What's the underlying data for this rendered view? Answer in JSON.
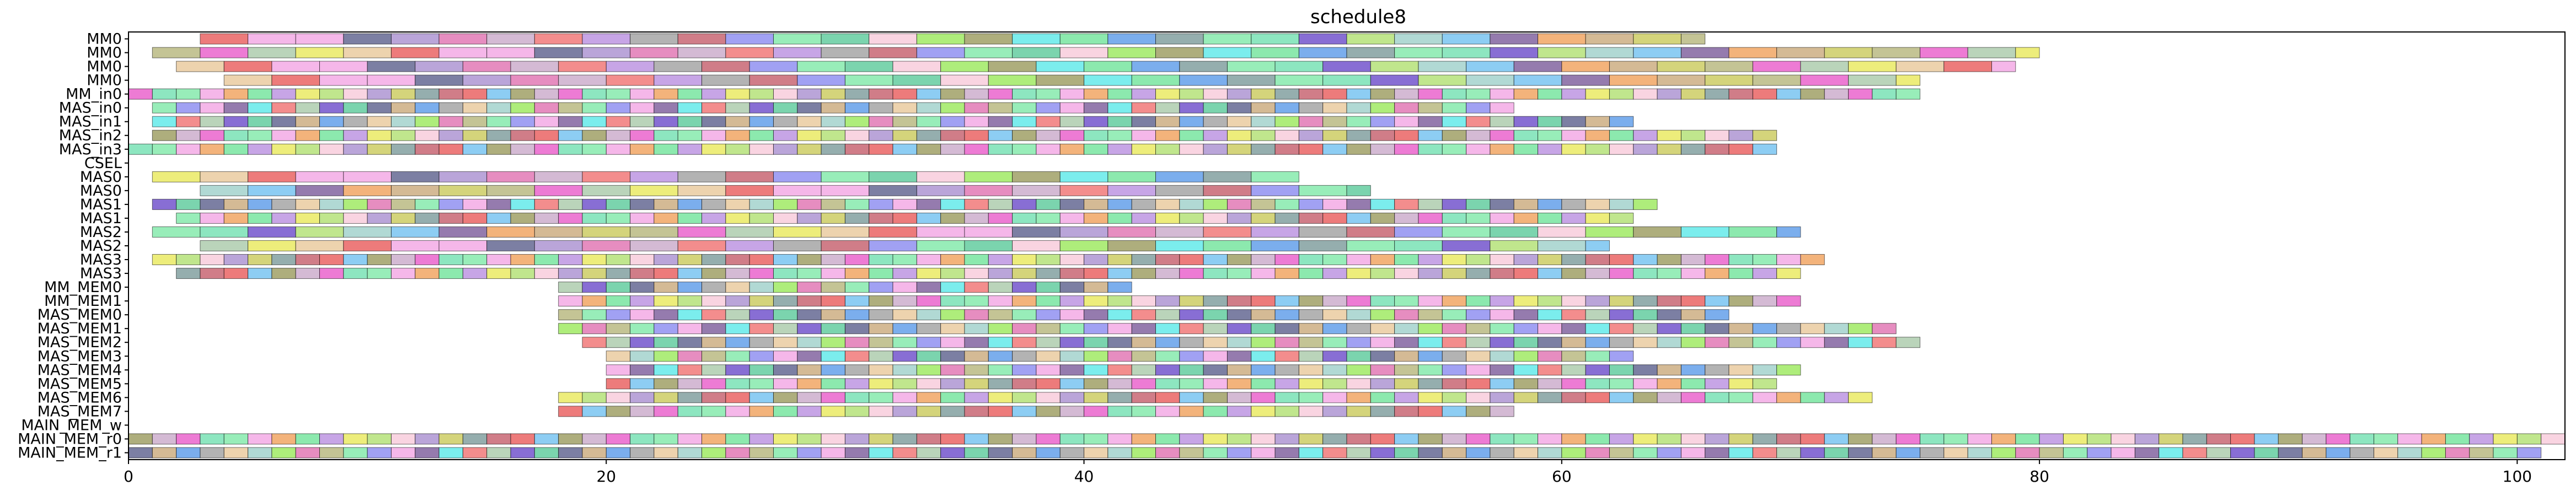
{
  "chart_data": {
    "type": "gantt",
    "title": "schedule8",
    "xlim": [
      0,
      102
    ],
    "xticks": [
      0,
      20,
      40,
      60,
      80,
      100
    ],
    "grid": false,
    "legend": "none",
    "rows": [
      "MM0",
      "MM0",
      "MM0",
      "MM0",
      "MM_in0",
      "MAS_in0",
      "MAS_in1",
      "MAS_in2",
      "MAS_in3",
      "CSEL",
      "MAS0",
      "MAS0",
      "MAS1",
      "MAS1",
      "MAS2",
      "MAS2",
      "MAS3",
      "MAS3",
      "MM_MEM0",
      "MM_MEM1",
      "MAS_MEM0",
      "MAS_MEM1",
      "MAS_MEM2",
      "MAS_MEM3",
      "MAS_MEM4",
      "MAS_MEM5",
      "MAS_MEM6",
      "MAS_MEM7",
      "MAIN_MEM_w",
      "MAIN_MEM_r0",
      "MAIN_MEM_r1"
    ],
    "palette": [
      "#5b5f8c",
      "#7a9a9a",
      "#f2a5e3",
      "#6fe39a",
      "#e8c89a",
      "#9a9a5c",
      "#a9c9a9",
      "#f7c9d9",
      "#b5b57a",
      "#7ee8a8",
      "#c9a97a",
      "#c45c6a",
      "#7a5a9a",
      "#b98fe0",
      "#9ed0c9",
      "#c9a9c9",
      "#6a4ac9",
      "#a98fd0",
      "#7ee8a8",
      "#f2a5e3",
      "#5a9ae8",
      "#e85a5a",
      "#5ae8e8",
      "#e8e85a",
      "#9ae85a",
      "#e85ac9",
      "#5ac99a",
      "#c9c95a",
      "#8a8af0",
      "#f0a05a",
      "#a0a0a0",
      "#70c0f0",
      "#f07070",
      "#b0e070",
      "#e070b0",
      "#70e0b0"
    ],
    "opacity": 0.8,
    "segments": [
      [
        0,
        3,
        66,
        2
      ],
      [
        1,
        1,
        80,
        2
      ],
      [
        2,
        2,
        79,
        2
      ],
      [
        3,
        4,
        75,
        2
      ],
      [
        4,
        0,
        75,
        1
      ],
      [
        5,
        1,
        58,
        1
      ],
      [
        6,
        1,
        63,
        1
      ],
      [
        7,
        1,
        69,
        1
      ],
      [
        8,
        0,
        69,
        1
      ],
      [
        10,
        1,
        49,
        2
      ],
      [
        11,
        3,
        52,
        2
      ],
      [
        12,
        1,
        64,
        1
      ],
      [
        13,
        2,
        63,
        1
      ],
      [
        14,
        1,
        70,
        2
      ],
      [
        15,
        3,
        62,
        2
      ],
      [
        16,
        1,
        71,
        1
      ],
      [
        17,
        2,
        70,
        1
      ],
      [
        18,
        18,
        42,
        1
      ],
      [
        19,
        18,
        70,
        1
      ],
      [
        20,
        18,
        67,
        1
      ],
      [
        21,
        18,
        74,
        1
      ],
      [
        22,
        19,
        75,
        1
      ],
      [
        23,
        20,
        63,
        1
      ],
      [
        24,
        20,
        70,
        1
      ],
      [
        25,
        20,
        69,
        1
      ],
      [
        26,
        18,
        73,
        1
      ],
      [
        27,
        18,
        58,
        1
      ],
      [
        29,
        0,
        102,
        1
      ],
      [
        30,
        0,
        101,
        1
      ]
    ]
  }
}
